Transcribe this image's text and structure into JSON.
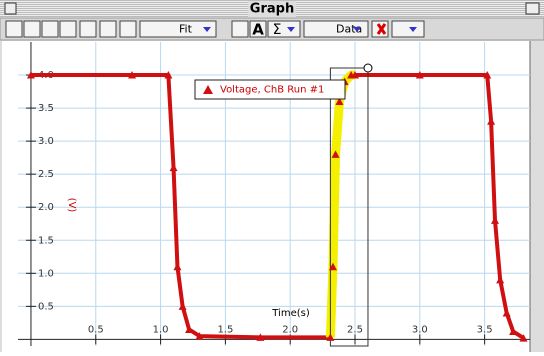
{
  "window": {
    "title": "Graph"
  },
  "toolbar": {
    "fit": "Fit",
    "text": "A",
    "stats": "Σ",
    "data": "Data"
  },
  "chart_data": {
    "type": "line",
    "xlabel": "Time(s)",
    "ylabel": "(V)",
    "xlim": [
      -0.1,
      3.85
    ],
    "ylim": [
      -0.1,
      4.5
    ],
    "xticks": [
      0.5,
      {
        "value": 1,
        "label": "1.0"
      },
      1.5,
      {
        "value": 2,
        "label": "2.0"
      },
      2.5,
      {
        "value": 3,
        "label": "3.0"
      },
      3.5
    ],
    "yticks": [
      0.5,
      {
        "value": 1,
        "label": "1.0"
      },
      1.5,
      {
        "value": 2,
        "label": "2.0"
      },
      2.5,
      {
        "value": 3,
        "label": "3.0"
      },
      3.5,
      {
        "value": 4,
        "label": "4.0"
      }
    ],
    "grid": true,
    "selection": {
      "xlim": [
        2.31,
        2.6
      ],
      "color": "#f5f000"
    },
    "x": [
      0,
      0.78,
      1.06,
      1.1,
      1.13,
      1.17,
      1.22,
      1.3,
      1.77,
      2.31,
      2.33,
      2.35,
      2.38,
      2.42,
      2.47,
      2.5,
      3.0,
      3.52,
      3.55,
      3.58,
      3.62,
      3.67,
      3.72,
      3.8
    ],
    "series": [
      {
        "name": "Voltage, ChB Run #1",
        "color": "#d01010",
        "values": [
          4.0,
          4.0,
          4.0,
          2.6,
          1.1,
          0.5,
          0.15,
          0.05,
          0.03,
          0.03,
          1.1,
          2.8,
          3.6,
          3.9,
          4.0,
          4.0,
          4.0,
          4.0,
          3.3,
          1.8,
          0.9,
          0.4,
          0.12,
          0.02
        ]
      }
    ]
  }
}
